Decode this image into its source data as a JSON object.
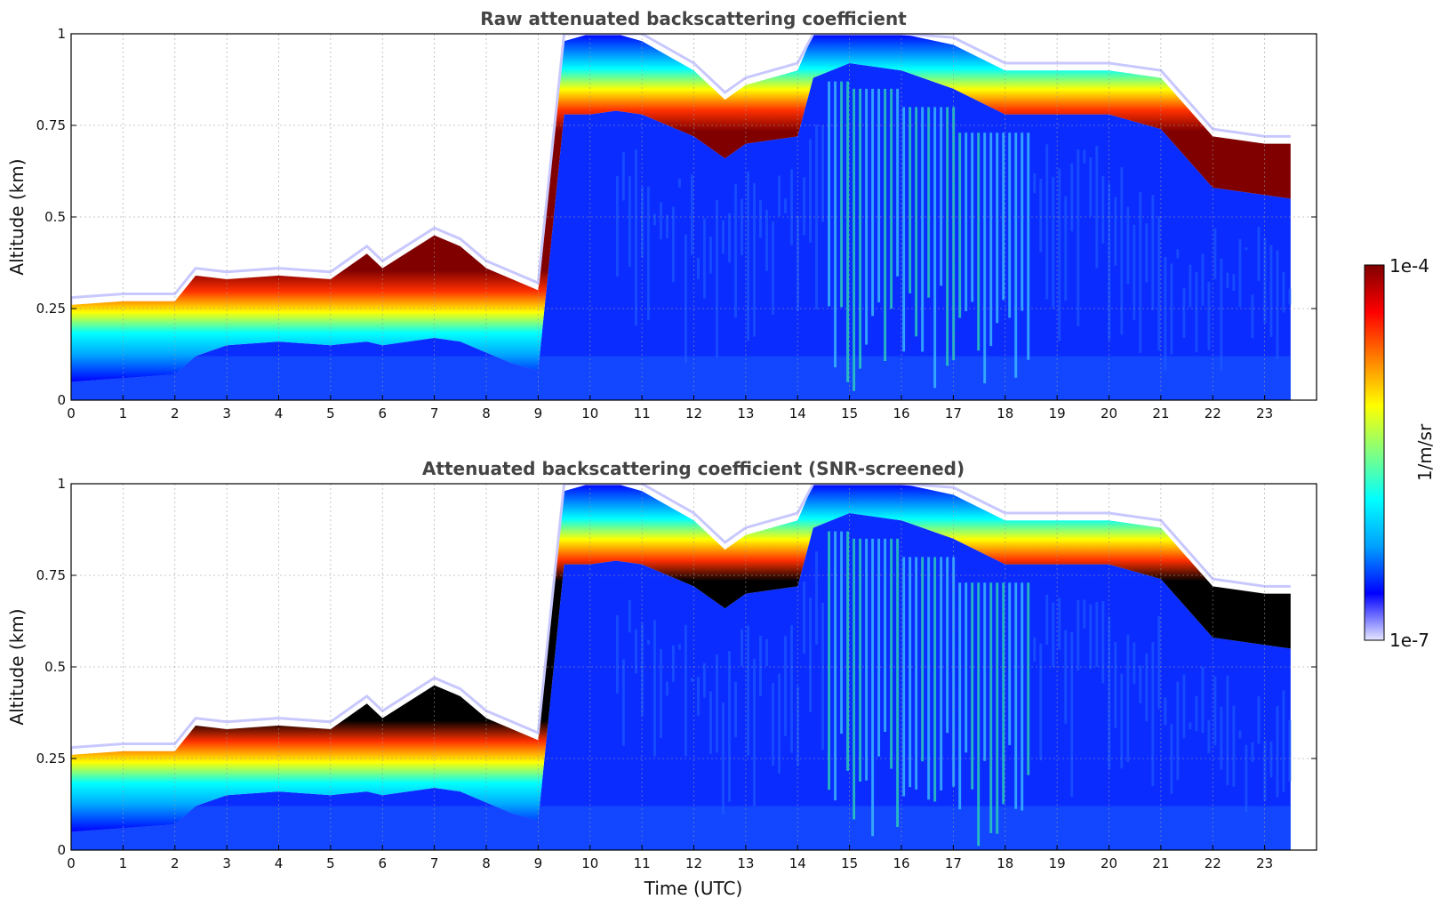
{
  "chart_data": [
    {
      "type": "heatmap",
      "title": "Raw attenuated backscattering coefficient",
      "xlabel": "",
      "ylabel": "Altitude (km)",
      "xlim": [
        0,
        24
      ],
      "ylim": [
        0,
        1
      ],
      "data_end_hour": 23.5,
      "xticks": [
        "0",
        "1",
        "2",
        "3",
        "4",
        "5",
        "6",
        "7",
        "8",
        "9",
        "10",
        "11",
        "12",
        "13",
        "14",
        "15",
        "16",
        "17",
        "18",
        "19",
        "20",
        "21",
        "22",
        "23"
      ],
      "yticks": [
        "0",
        "0.25",
        "0.5",
        "0.75",
        "1"
      ],
      "grid": true,
      "saturated_color": "#800000",
      "cloud_layer": {
        "hours": [
          0,
          1,
          2,
          2.4,
          3,
          4,
          5,
          5.7,
          6,
          7,
          7.5,
          8,
          8.5,
          9,
          9.5,
          10,
          10.5,
          11,
          12,
          12.6,
          13,
          14,
          14.3,
          15,
          16,
          17,
          18,
          19,
          20,
          21,
          22,
          23,
          23.5
        ],
        "base_km": [
          0.05,
          0.06,
          0.07,
          0.12,
          0.15,
          0.16,
          0.15,
          0.16,
          0.15,
          0.17,
          0.16,
          0.13,
          0.1,
          0.08,
          0.78,
          0.78,
          0.79,
          0.78,
          0.72,
          0.66,
          0.7,
          0.72,
          0.88,
          0.92,
          0.9,
          0.85,
          0.78,
          0.78,
          0.78,
          0.74,
          0.58,
          0.56,
          0.55
        ],
        "top_km": [
          0.26,
          0.27,
          0.27,
          0.34,
          0.33,
          0.34,
          0.33,
          0.4,
          0.36,
          0.45,
          0.42,
          0.36,
          0.33,
          0.3,
          0.98,
          1.0,
          1.0,
          0.98,
          0.9,
          0.82,
          0.86,
          0.9,
          1.0,
          1.0,
          1.0,
          0.97,
          0.9,
          0.9,
          0.9,
          0.88,
          0.72,
          0.7,
          0.7
        ]
      }
    },
    {
      "type": "heatmap",
      "title": "Attenuated backscattering coefficient (SNR-screened)",
      "xlabel": "Time (UTC)",
      "ylabel": "Altitude (km)",
      "xlim": [
        0,
        24
      ],
      "ylim": [
        0,
        1
      ],
      "data_end_hour": 23.5,
      "xticks": [
        "0",
        "1",
        "2",
        "3",
        "4",
        "5",
        "6",
        "7",
        "8",
        "9",
        "10",
        "11",
        "12",
        "13",
        "14",
        "15",
        "16",
        "17",
        "18",
        "19",
        "20",
        "21",
        "22",
        "23"
      ],
      "yticks": [
        "0",
        "0.25",
        "0.5",
        "0.75",
        "1"
      ],
      "grid": true,
      "saturated_color": "#000000",
      "cloud_layer": {
        "hours": [
          0,
          1,
          2,
          2.4,
          3,
          4,
          5,
          5.7,
          6,
          7,
          7.5,
          8,
          8.5,
          9,
          9.5,
          10,
          10.5,
          11,
          12,
          12.6,
          13,
          14,
          14.3,
          15,
          16,
          17,
          18,
          19,
          20,
          21,
          22,
          23,
          23.5
        ],
        "base_km": [
          0.05,
          0.06,
          0.07,
          0.12,
          0.15,
          0.16,
          0.15,
          0.16,
          0.15,
          0.17,
          0.16,
          0.13,
          0.1,
          0.08,
          0.78,
          0.78,
          0.79,
          0.78,
          0.72,
          0.66,
          0.7,
          0.72,
          0.88,
          0.92,
          0.9,
          0.85,
          0.78,
          0.78,
          0.78,
          0.74,
          0.58,
          0.56,
          0.55
        ],
        "top_km": [
          0.26,
          0.27,
          0.27,
          0.34,
          0.33,
          0.34,
          0.33,
          0.4,
          0.36,
          0.45,
          0.42,
          0.36,
          0.33,
          0.3,
          0.98,
          1.0,
          1.0,
          0.98,
          0.9,
          0.82,
          0.86,
          0.9,
          1.0,
          1.0,
          1.0,
          0.97,
          0.9,
          0.9,
          0.9,
          0.88,
          0.72,
          0.7,
          0.7
        ]
      }
    }
  ],
  "colorbar": {
    "label": "1/m/sr",
    "max_label": "1e-4",
    "min_label": "1e-7",
    "scale": "log",
    "range": [
      1e-07,
      0.0001
    ],
    "colormap": "jet",
    "stops": [
      "#e6e6ff",
      "#0000ff",
      "#00a0ff",
      "#00ffff",
      "#80ff80",
      "#ffff00",
      "#ff8000",
      "#ff0000",
      "#800000"
    ]
  }
}
